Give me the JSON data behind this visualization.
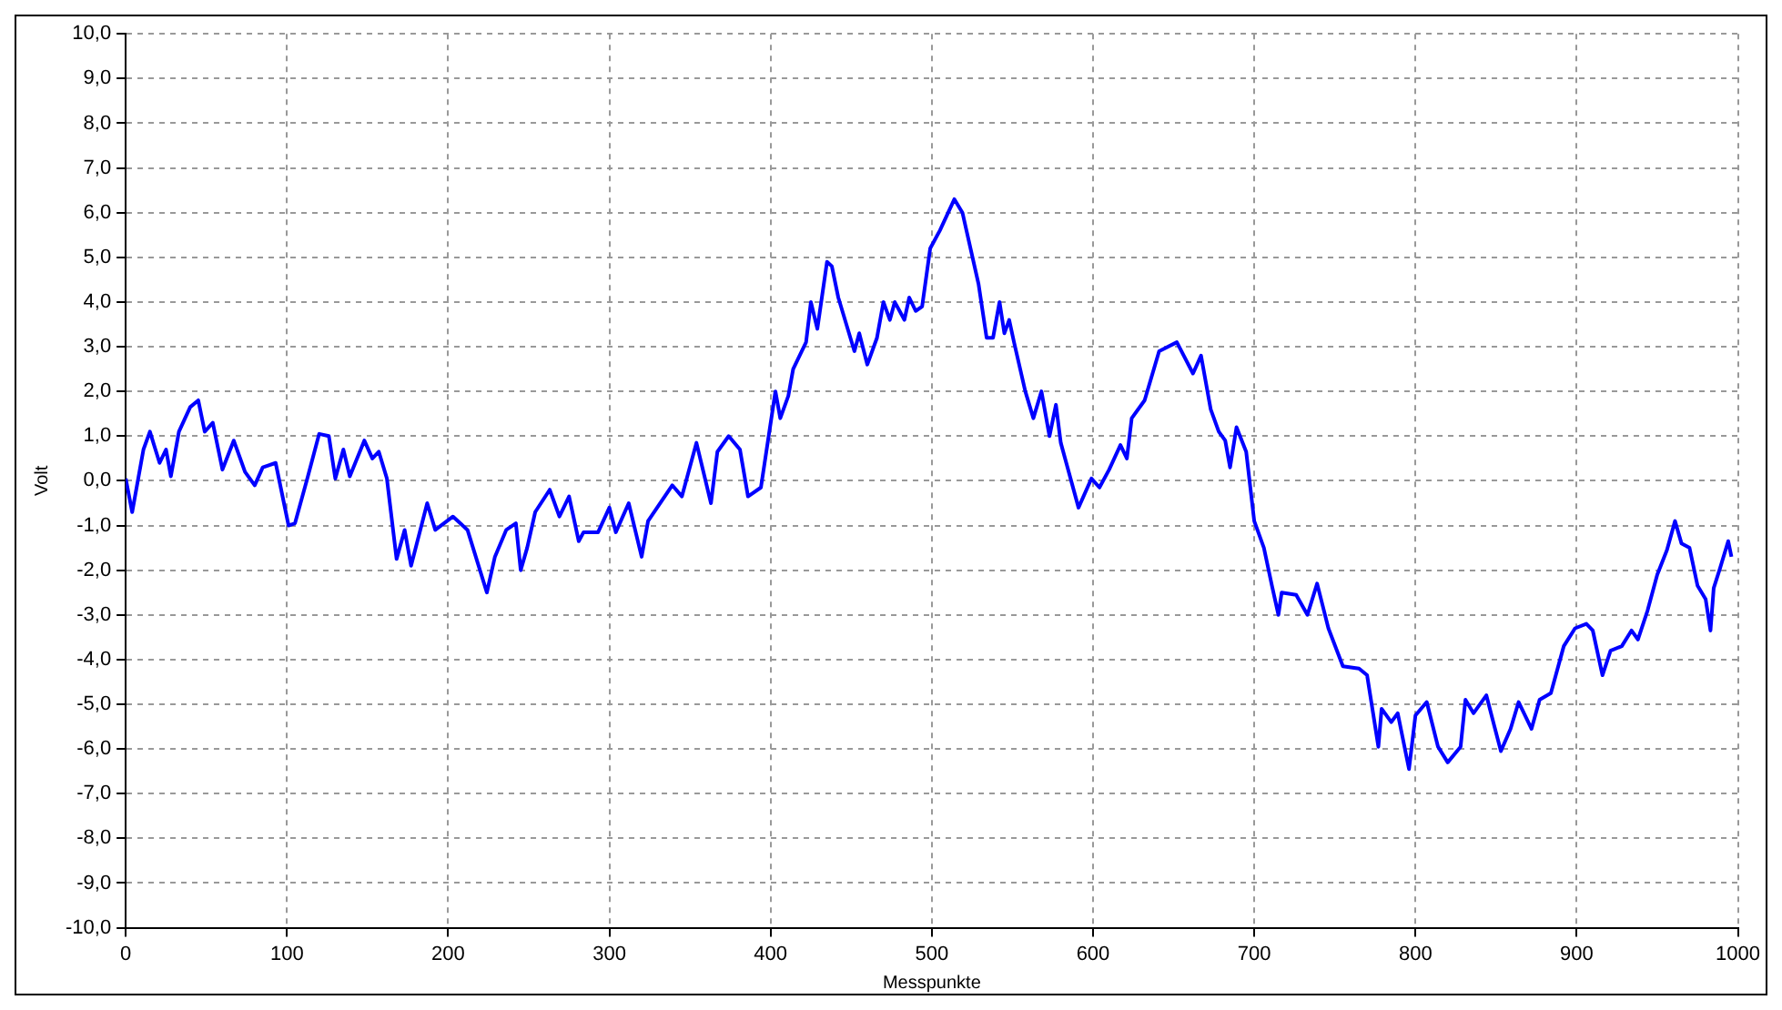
{
  "chart_data": {
    "type": "line",
    "xlabel": "Messpunkte",
    "ylabel": "Volt",
    "xlim": [
      0,
      1000
    ],
    "ylim": [
      -10,
      10
    ],
    "xticks": [
      0,
      100,
      200,
      300,
      400,
      500,
      600,
      700,
      800,
      900,
      1000
    ],
    "yticks": [
      {
        "value": -10,
        "label": "-10,0"
      },
      {
        "value": -9,
        "label": "-9,0"
      },
      {
        "value": -8,
        "label": "-8,0"
      },
      {
        "value": -7,
        "label": "-7,0"
      },
      {
        "value": -6,
        "label": "-6,0"
      },
      {
        "value": -5,
        "label": "-5,0"
      },
      {
        "value": -4,
        "label": "-4,0"
      },
      {
        "value": -3,
        "label": "-3,0"
      },
      {
        "value": -2,
        "label": "-2,0"
      },
      {
        "value": -1,
        "label": "-1,0"
      },
      {
        "value": 0,
        "label": "0,0"
      },
      {
        "value": 1,
        "label": "1,0"
      },
      {
        "value": 2,
        "label": "2,0"
      },
      {
        "value": 3,
        "label": "3,0"
      },
      {
        "value": 4,
        "label": "4,0"
      },
      {
        "value": 5,
        "label": "5,0"
      },
      {
        "value": 6,
        "label": "6,0"
      },
      {
        "value": 7,
        "label": "7,0"
      },
      {
        "value": 8,
        "label": "8,0"
      },
      {
        "value": 9,
        "label": "9,0"
      },
      {
        "value": 10,
        "label": "10,0"
      }
    ],
    "grid": true,
    "legend": false,
    "marker": "none",
    "line_style": "solid",
    "series": [
      {
        "color": "#0000ff",
        "x": [
          0,
          4,
          11,
          15,
          21,
          25,
          28,
          33,
          40,
          45,
          49,
          54,
          60,
          67,
          74,
          80,
          85,
          93,
          101,
          105,
          113,
          120,
          126,
          130,
          135,
          139,
          148,
          153,
          157,
          162,
          168,
          173,
          177,
          187,
          192,
          203,
          212,
          224,
          229,
          236,
          242,
          245,
          249,
          254,
          263,
          269,
          275,
          281,
          284,
          293,
          300,
          304,
          312,
          320,
          324,
          339,
          345,
          354,
          363,
          367,
          374,
          381,
          386,
          394,
          403,
          406,
          411,
          414,
          422,
          425,
          429,
          435,
          438,
          442,
          452,
          455,
          460,
          466,
          470,
          474,
          477,
          483,
          486,
          490,
          494,
          499,
          505,
          514,
          519,
          529,
          534,
          538,
          542,
          545,
          548,
          551,
          558,
          563,
          568,
          573,
          577,
          580,
          591,
          599,
          604,
          610,
          617,
          621,
          624,
          632,
          641,
          652,
          662,
          667,
          673,
          678,
          682,
          685,
          689,
          695,
          700,
          706,
          711,
          715,
          717,
          726,
          733,
          739,
          746,
          755,
          765,
          770,
          777,
          779,
          785,
          789,
          796,
          800,
          807,
          814,
          820,
          828,
          831,
          836,
          844,
          849,
          853,
          859,
          864,
          872,
          877,
          884,
          892,
          899,
          906,
          910,
          916,
          921,
          928,
          934,
          938,
          944,
          950,
          956,
          961,
          965,
          970,
          975,
          980,
          983,
          985,
          989,
          994,
          996
        ],
        "values": [
          0.05,
          -0.7,
          0.7,
          1.1,
          0.4,
          0.7,
          0.1,
          1.1,
          1.65,
          1.8,
          1.1,
          1.3,
          0.25,
          0.9,
          0.2,
          -0.1,
          0.3,
          0.4,
          -1.0,
          -0.95,
          0.1,
          1.05,
          1.0,
          0.05,
          0.7,
          0.1,
          0.9,
          0.5,
          0.65,
          0.05,
          -1.75,
          -1.1,
          -1.9,
          -0.5,
          -1.1,
          -0.8,
          -1.1,
          -2.5,
          -1.7,
          -1.1,
          -0.95,
          -2.0,
          -1.5,
          -0.7,
          -0.2,
          -0.8,
          -0.35,
          -1.35,
          -1.15,
          -1.15,
          -0.6,
          -1.15,
          -0.5,
          -1.7,
          -0.9,
          -0.1,
          -0.35,
          0.85,
          -0.5,
          0.65,
          1.0,
          0.7,
          -0.35,
          -0.15,
          2.0,
          1.4,
          1.9,
          2.5,
          3.1,
          4.0,
          3.4,
          4.9,
          4.8,
          4.1,
          2.9,
          3.3,
          2.6,
          3.2,
          4.0,
          3.6,
          4.0,
          3.6,
          4.1,
          3.8,
          3.9,
          5.2,
          5.6,
          6.3,
          6.0,
          4.4,
          3.2,
          3.2,
          4.0,
          3.3,
          3.6,
          3.1,
          2.0,
          1.4,
          2.0,
          1.0,
          1.7,
          0.85,
          -0.6,
          0.05,
          -0.15,
          0.25,
          0.8,
          0.5,
          1.4,
          1.8,
          2.9,
          3.1,
          2.4,
          2.8,
          1.6,
          1.1,
          0.9,
          0.3,
          1.2,
          0.65,
          -0.9,
          -1.5,
          -2.35,
          -3.0,
          -2.5,
          -2.55,
          -3.0,
          -2.3,
          -3.3,
          -4.15,
          -4.2,
          -4.35,
          -5.95,
          -5.1,
          -5.4,
          -5.2,
          -6.45,
          -5.25,
          -4.95,
          -5.95,
          -6.3,
          -5.95,
          -4.9,
          -5.2,
          -4.8,
          -5.5,
          -6.05,
          -5.55,
          -4.95,
          -5.55,
          -4.9,
          -4.75,
          -3.7,
          -3.3,
          -3.2,
          -3.35,
          -4.35,
          -3.8,
          -3.7,
          -3.35,
          -3.55,
          -2.9,
          -2.1,
          -1.55,
          -0.9,
          -1.4,
          -1.5,
          -2.35,
          -2.65,
          -3.35,
          -2.4,
          -1.95,
          -1.35,
          -1.7
        ]
      }
    ]
  }
}
